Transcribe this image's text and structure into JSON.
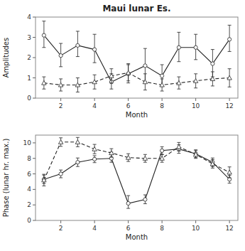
{
  "chart_data": [
    {
      "type": "line",
      "title": "Maui lunar Es.",
      "x_label": "Month",
      "y_label": "Amplitudes",
      "x": [
        1,
        2,
        3,
        4,
        5,
        6,
        7,
        8,
        9,
        10,
        11,
        12
      ],
      "xlim": [
        0.5,
        12.5
      ],
      "xticks": [
        2,
        4,
        6,
        8,
        10,
        12
      ],
      "ylim": [
        0,
        4
      ],
      "yticks": [
        0,
        1,
        2,
        3,
        4
      ],
      "series": [
        {
          "color": "#222222",
          "line_style": "solid",
          "marker": "circle",
          "values": [
            3.1,
            2.1,
            2.6,
            2.4,
            0.8,
            1.2,
            1.6,
            1.1,
            2.5,
            2.5,
            1.7,
            2.9
          ],
          "error_low": [
            0.6,
            0.55,
            0.55,
            0.65,
            0.35,
            0.45,
            0.8,
            0.5,
            0.7,
            0.6,
            0.65,
            0.6
          ],
          "error_high": [
            0.7,
            0.6,
            0.7,
            0.75,
            0.4,
            0.5,
            0.85,
            0.55,
            0.75,
            0.65,
            0.7,
            0.7
          ]
        },
        {
          "color": "#222222",
          "line_style": "dashed",
          "marker": "triangle",
          "values": [
            0.75,
            0.65,
            0.65,
            0.8,
            1.1,
            1.25,
            0.8,
            0.65,
            0.75,
            0.85,
            0.95,
            1.0
          ],
          "error_low": [
            0.3,
            0.3,
            0.35,
            0.35,
            0.35,
            0.4,
            0.4,
            0.3,
            0.3,
            0.35,
            0.35,
            0.45
          ],
          "error_high": [
            0.3,
            0.3,
            0.35,
            0.35,
            0.35,
            0.4,
            0.4,
            0.3,
            0.3,
            0.35,
            0.35,
            0.45
          ]
        }
      ]
    },
    {
      "type": "line",
      "x_label": "Month",
      "y_label": "Phase (lunar hr. max.)",
      "x": [
        1,
        2,
        3,
        4,
        5,
        6,
        7,
        8,
        9,
        10,
        11,
        12
      ],
      "xlim": [
        0.5,
        12.5
      ],
      "xticks": [
        2,
        4,
        6,
        8,
        10,
        12
      ],
      "ylim": [
        0,
        11
      ],
      "yticks": [
        0,
        2,
        4,
        6,
        8,
        10
      ],
      "series": [
        {
          "color": "#222222",
          "line_style": "solid",
          "marker": "circle",
          "values": [
            5.3,
            6.0,
            7.5,
            7.9,
            8.0,
            2.2,
            2.7,
            9.0,
            9.2,
            8.6,
            7.5,
            5.3
          ],
          "error_low": [
            0.55,
            0.5,
            0.55,
            0.45,
            0.5,
            0.65,
            0.55,
            0.5,
            0.55,
            0.5,
            0.55,
            0.5
          ],
          "error_high": [
            0.55,
            0.5,
            0.55,
            0.45,
            0.8,
            1.0,
            0.6,
            0.5,
            0.55,
            0.5,
            0.55,
            0.5
          ]
        },
        {
          "color": "#222222",
          "line_style": "dashed",
          "marker": "triangle",
          "values": [
            5.2,
            10.1,
            10.1,
            9.2,
            8.7,
            8.1,
            8.0,
            8.0,
            9.5,
            8.5,
            7.3,
            6.2
          ],
          "error_low": [
            0.75,
            0.55,
            0.6,
            0.6,
            0.55,
            0.5,
            0.5,
            0.5,
            0.55,
            0.5,
            0.55,
            0.7
          ],
          "error_high": [
            0.75,
            0.55,
            0.6,
            0.6,
            0.55,
            0.5,
            0.5,
            0.5,
            0.55,
            0.5,
            0.55,
            0.7
          ]
        }
      ]
    }
  ]
}
